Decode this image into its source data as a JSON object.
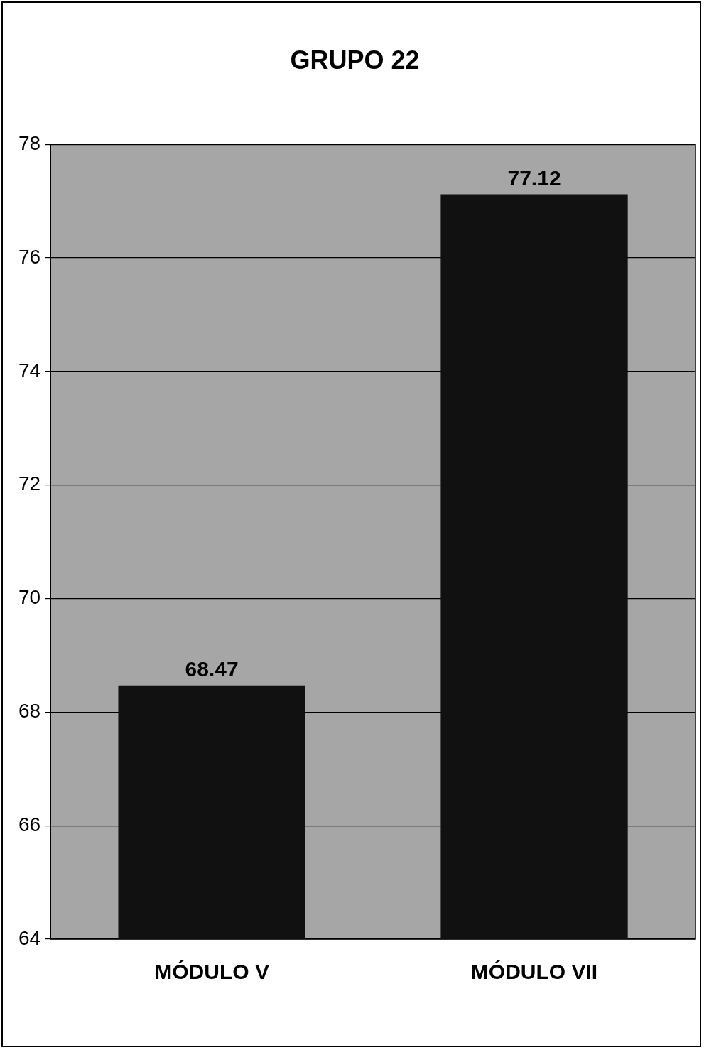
{
  "chart_data": {
    "type": "bar",
    "title": "GRUPO 22",
    "categories": [
      "MÓDULO V",
      "MÓDULO VII"
    ],
    "values": [
      68.47,
      77.12
    ],
    "color": "#111111",
    "ylim": [
      64,
      78
    ],
    "yticks": [
      64,
      66,
      68,
      70,
      72,
      74,
      76,
      78
    ],
    "grid": "y",
    "data_labels": true,
    "legend": false
  }
}
